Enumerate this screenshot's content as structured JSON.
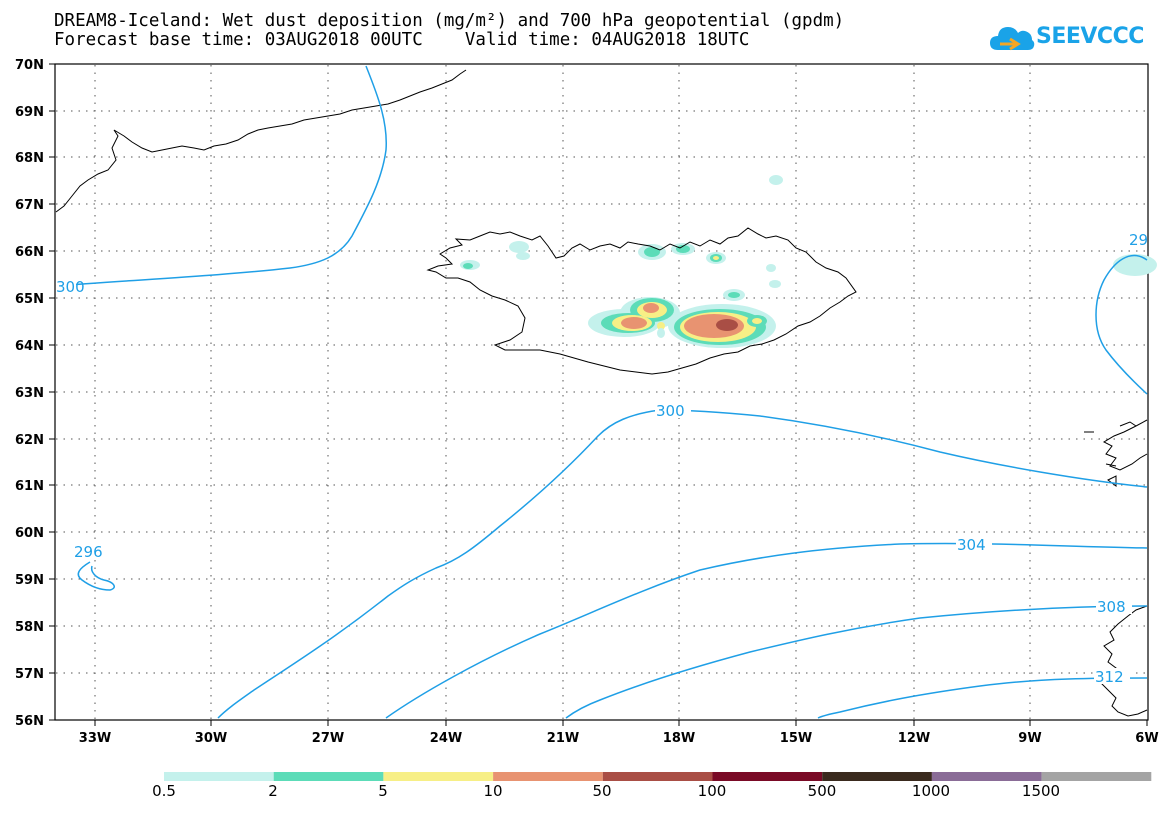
{
  "header": {
    "title_line1": "DREAM8-Iceland: Wet dust deposition (mg/m²) and 700 hPa geopotential (gpdm)",
    "title_line2": "Forecast base time: 03AUG2018 00UTC    Valid time: 04AUG2018 18UTC"
  },
  "logo": {
    "text": "SEEVCCC",
    "icon": "cloud-icon",
    "color": "#1aa3e8"
  },
  "map": {
    "lat_labels": [
      "70N",
      "69N",
      "68N",
      "67N",
      "66N",
      "65N",
      "64N",
      "63N",
      "62N",
      "61N",
      "60N",
      "59N",
      "58N",
      "57N",
      "56N"
    ],
    "lon_labels": [
      "33W",
      "30W",
      "27W",
      "24W",
      "21W",
      "18W",
      "15W",
      "12W",
      "9W",
      "6W"
    ],
    "lat_range": [
      56,
      70
    ],
    "lon_range": [
      -34.4,
      -6
    ],
    "grid": "dotted",
    "contour_color": "#1f9fe6",
    "contour_labels": [
      "300",
      "300",
      "304",
      "308",
      "312",
      "296",
      "29"
    ]
  },
  "colorbar": {
    "labels": [
      "0.5",
      "2",
      "5",
      "10",
      "50",
      "100",
      "500",
      "1000",
      "1500"
    ],
    "colors": [
      "#c4f1ec",
      "#5cdcb8",
      "#f7ef86",
      "#e89371",
      "#a94e45",
      "#7a0a26",
      "#3a2a1e",
      "#8a6c97",
      "#a4a4a4"
    ]
  }
}
